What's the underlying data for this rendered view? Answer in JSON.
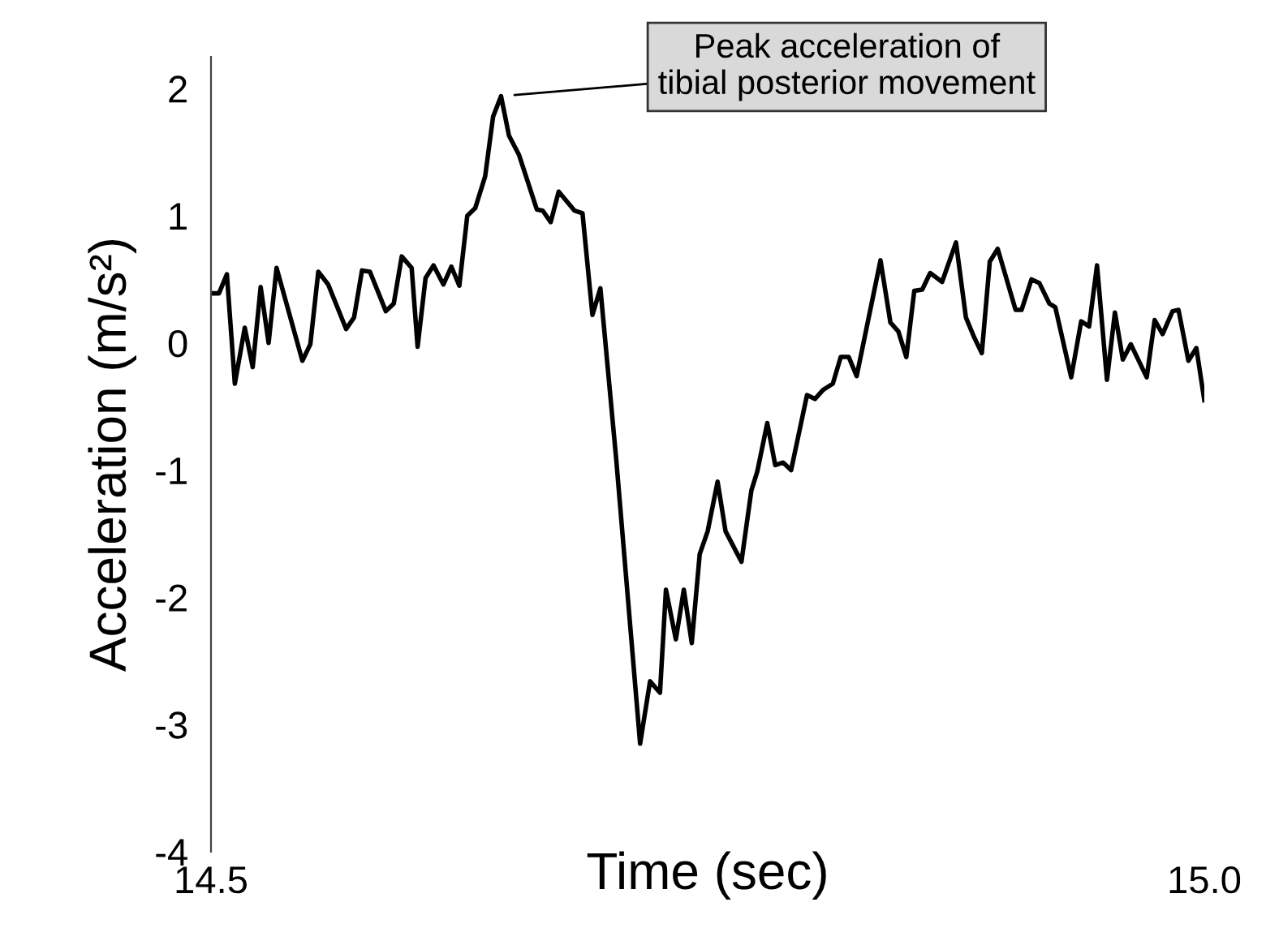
{
  "chart_data": {
    "type": "line",
    "xlabel": "Time (sec)",
    "ylabel": "Acceleration (m/s²)",
    "x": [
      14.5,
      14.504,
      14.508,
      14.512,
      14.517,
      14.521,
      14.525,
      14.529,
      14.533,
      14.546,
      14.55,
      14.554,
      14.559,
      14.568,
      14.572,
      14.576,
      14.58,
      14.588,
      14.592,
      14.596,
      14.601,
      14.604,
      14.608,
      14.612,
      14.617,
      14.621,
      14.625,
      14.629,
      14.633,
      14.638,
      14.642,
      14.646,
      14.65,
      14.655,
      14.664,
      14.667,
      14.671,
      14.675,
      14.683,
      14.687,
      14.692,
      14.696,
      14.704,
      14.716,
      14.721,
      14.726,
      14.729,
      14.734,
      14.738,
      14.742,
      14.746,
      14.75,
      14.755,
      14.759,
      14.767,
      14.772,
      14.775,
      14.78,
      14.784,
      14.788,
      14.792,
      14.8,
      14.804,
      14.808,
      14.813,
      14.817,
      14.821,
      14.825,
      14.837,
      14.842,
      14.846,
      14.85,
      14.854,
      14.858,
      14.862,
      14.868,
      14.875,
      14.88,
      14.884,
      14.888,
      14.892,
      14.896,
      14.905,
      14.908,
      14.913,
      14.917,
      14.922,
      14.925,
      14.933,
      14.938,
      14.942,
      14.946,
      14.951,
      14.955,
      14.959,
      14.963,
      14.971,
      14.975,
      14.979,
      14.984,
      14.987,
      14.992,
      14.996,
      15.0
    ],
    "series": [
      {
        "color": "#000000",
        "values": [
          0.39,
          0.39,
          0.54,
          -0.32,
          0.12,
          -0.19,
          0.44,
          0.0,
          0.59,
          -0.14,
          -0.01,
          0.56,
          0.46,
          0.11,
          0.2,
          0.57,
          0.56,
          0.25,
          0.31,
          0.68,
          0.59,
          -0.03,
          0.51,
          0.61,
          0.46,
          0.6,
          0.45,
          1.0,
          1.06,
          1.31,
          1.78,
          1.94,
          1.63,
          1.48,
          1.05,
          1.04,
          0.95,
          1.19,
          1.04,
          1.02,
          0.22,
          0.43,
          -0.92,
          -3.15,
          -2.66,
          -2.75,
          -1.94,
          -2.33,
          -1.94,
          -2.36,
          -1.66,
          -1.48,
          -1.09,
          -1.48,
          -1.72,
          -1.16,
          -1.01,
          -0.63,
          -0.96,
          -0.94,
          -1.0,
          -0.41,
          -0.44,
          -0.37,
          -0.32,
          -0.11,
          -0.11,
          -0.26,
          0.65,
          0.16,
          0.09,
          -0.11,
          0.41,
          0.42,
          0.55,
          0.48,
          0.79,
          0.2,
          0.05,
          -0.08,
          0.64,
          0.74,
          0.26,
          0.26,
          0.5,
          0.47,
          0.31,
          0.28,
          -0.27,
          0.17,
          0.13,
          0.61,
          -0.29,
          0.24,
          -0.13,
          -0.01,
          -0.27,
          0.18,
          0.07,
          0.25,
          0.26,
          -0.14,
          -0.04,
          -0.45
        ]
      }
    ],
    "xlim": [
      14.5,
      15.0
    ],
    "xticks": [
      14.5,
      {
        "value": 15.0,
        "label": "15.0"
      }
    ],
    "ylim": [
      -4,
      2.25
    ],
    "yticks": [
      -4,
      -3,
      -2,
      -1,
      0,
      1,
      2
    ],
    "annotations": [
      {
        "text": "Peak acceleration of\ntibial posterior movement",
        "x": 14.646,
        "y": 1.94
      }
    ],
    "grid": false,
    "legend": false,
    "marker": "none",
    "line_style": "solid"
  }
}
